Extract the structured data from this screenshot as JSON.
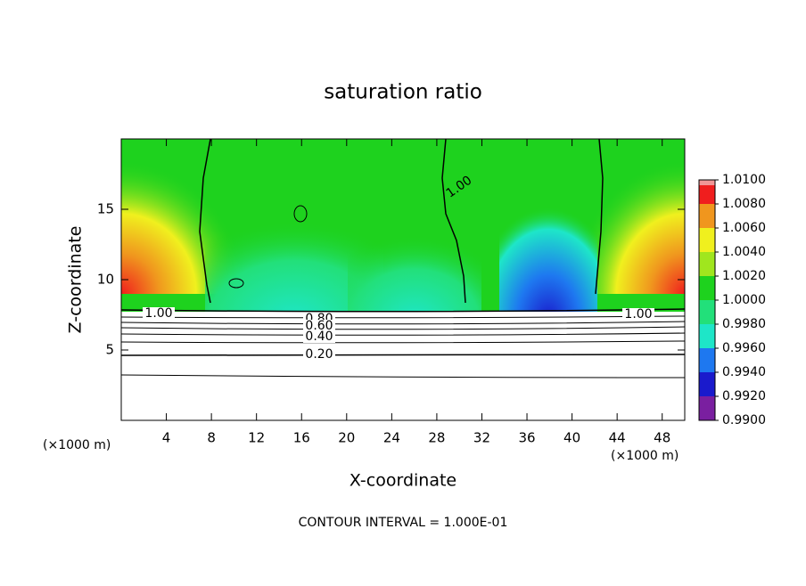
{
  "chart_data": {
    "type": "contour",
    "title": "saturation ratio",
    "x_label": "X-coordinate",
    "y_label": "Z-coordinate",
    "x_unit_left": "(×1000 m)",
    "x_unit_right": "(×1000 m)",
    "footnote": "CONTOUR INTERVAL = 1.000E-01",
    "xlim": [
      0,
      50
    ],
    "ylim": [
      0,
      20
    ],
    "xticks": [
      4,
      8,
      12,
      16,
      20,
      24,
      28,
      32,
      36,
      40,
      44,
      48
    ],
    "yticks": [
      5,
      10,
      15
    ],
    "colorbar": {
      "levels": [
        {
          "value": 0.99,
          "label": "0.9900"
        },
        {
          "value": 0.992,
          "label": "0.9920"
        },
        {
          "value": 0.994,
          "label": "0.9940"
        },
        {
          "value": 0.996,
          "label": "0.9960"
        },
        {
          "value": 0.998,
          "label": "0.9980"
        },
        {
          "value": 1.0,
          "label": "1.0000"
        },
        {
          "value": 1.002,
          "label": "1.0020"
        },
        {
          "value": 1.004,
          "label": "1.0040"
        },
        {
          "value": 1.006,
          "label": "1.0060"
        },
        {
          "value": 1.008,
          "label": "1.0080"
        },
        {
          "value": 1.01,
          "label": "1.0100"
        }
      ],
      "colors": [
        "#7a1fa0",
        "#1a1acc",
        "#1e78f0",
        "#1ee6c8",
        "#22e07a",
        "#1ed21e",
        "#a0e61e",
        "#f0f01e",
        "#f0961e",
        "#f01e1e",
        "#f09696"
      ]
    },
    "contour_labels": [
      {
        "value": 1,
        "label": "1.00"
      },
      {
        "value": 1,
        "label": "1.00"
      },
      {
        "value": 1,
        "label": "1.00"
      },
      {
        "value": 0.8,
        "label": "0.80"
      },
      {
        "value": 0.6,
        "label": "0.60"
      },
      {
        "value": 0.4,
        "label": "0.40"
      },
      {
        "value": 0.2,
        "label": "0.20"
      }
    ]
  }
}
